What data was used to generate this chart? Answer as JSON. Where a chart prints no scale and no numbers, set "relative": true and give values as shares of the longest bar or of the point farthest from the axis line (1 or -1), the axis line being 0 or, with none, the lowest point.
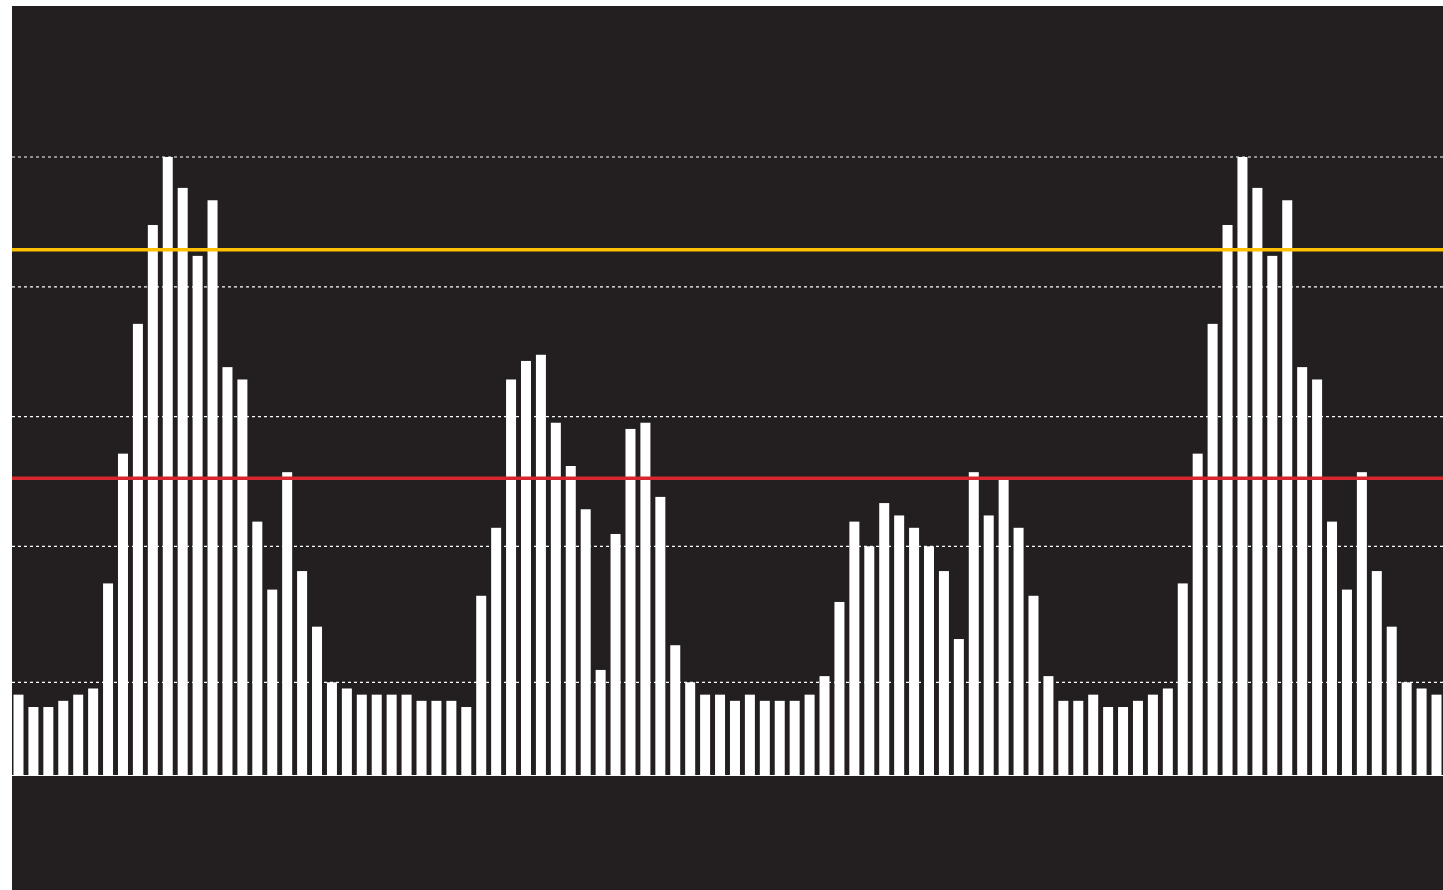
{
  "chart_data": {
    "type": "bar",
    "relative": true,
    "categories": [
      null,
      null,
      null,
      null,
      null,
      null,
      null,
      null,
      null,
      null,
      null,
      null,
      null,
      null,
      null,
      null,
      null,
      null,
      null,
      null,
      null,
      null,
      null,
      null,
      null,
      null,
      null,
      null,
      null,
      null,
      null,
      null,
      null,
      null,
      null,
      null,
      null,
      null,
      null,
      null,
      null,
      null,
      null,
      null,
      null,
      null,
      null,
      null,
      null,
      null,
      null,
      null,
      null,
      null,
      null,
      null,
      null,
      null,
      null,
      null,
      null,
      null,
      null,
      null,
      null,
      null,
      null,
      null,
      null,
      null,
      null,
      null,
      null,
      null,
      null,
      null,
      null,
      null,
      null,
      null,
      null,
      null,
      null,
      null,
      null,
      null,
      null,
      null,
      null,
      null,
      null,
      null,
      null,
      null,
      null,
      null
    ],
    "values": [
      0.13,
      0.11,
      0.11,
      0.12,
      0.13,
      0.14,
      0.31,
      0.52,
      0.73,
      0.89,
      1,
      0.95,
      0.84,
      0.93,
      0.66,
      0.64,
      0.41,
      0.3,
      0.49,
      0.33,
      0.24,
      0.15,
      0.14,
      0.13,
      0.13,
      0.13,
      0.13,
      0.12,
      0.12,
      0.12,
      0.11,
      0.29,
      0.4,
      0.64,
      0.67,
      0.68,
      0.57,
      0.5,
      0.43,
      0.17,
      0.39,
      0.56,
      0.57,
      0.45,
      0.21,
      0.15,
      0.13,
      0.13,
      0.12,
      0.13,
      0.12,
      0.12,
      0.12,
      0.13,
      0.16,
      0.28,
      0.41,
      0.37,
      0.44,
      0.42,
      0.4,
      0.37,
      0.33,
      0.22,
      0.49,
      0.42,
      0.48,
      0.4,
      0.29,
      0.16,
      0.12,
      0.12,
      0.13,
      0.11,
      0.11,
      0.12,
      0.13,
      0.14,
      0.31,
      0.52,
      0.73,
      0.89,
      1,
      0.95,
      0.84,
      0.93,
      0.66,
      0.64,
      0.41,
      0.3,
      0.49,
      0.33,
      0.24,
      0.15,
      0.14,
      0.13
    ],
    "color": "#ffffff",
    "ref_lines": [
      {
        "axis": "y",
        "value": 1,
        "color": "#ffffff",
        "line_style": "dotted"
      },
      {
        "axis": "y",
        "value": 0.79,
        "color": "#ffffff",
        "line_style": "dotted"
      },
      {
        "axis": "y",
        "value": 0.58,
        "color": "#ffffff",
        "line_style": "dotted"
      },
      {
        "axis": "y",
        "value": 0.37,
        "color": "#ffffff",
        "line_style": "dotted"
      },
      {
        "axis": "y",
        "value": 0.15,
        "color": "#ffffff",
        "line_style": "dotted"
      },
      {
        "axis": "y",
        "value": 0.85,
        "color": "#ffc000",
        "line_style": "solid"
      },
      {
        "axis": "y",
        "value": 0.48,
        "color": "#d7262e",
        "line_style": "solid"
      }
    ]
  }
}
